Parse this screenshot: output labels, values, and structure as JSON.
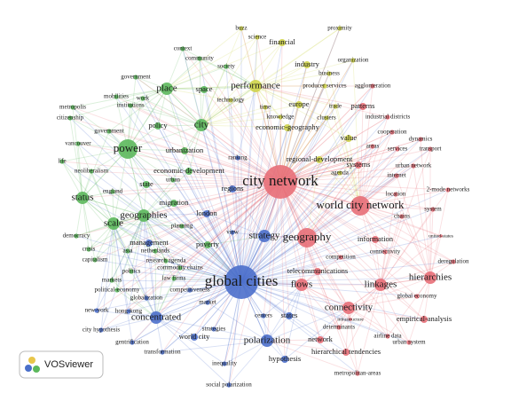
{
  "nodes": [
    {
      "label": "buzz"
    },
    {
      "label": "proximity"
    },
    {
      "label": "science"
    },
    {
      "label": "financial"
    },
    {
      "label": "context"
    },
    {
      "label": "community"
    },
    {
      "label": "organization"
    },
    {
      "label": "society"
    },
    {
      "label": "industry"
    },
    {
      "label": "business"
    },
    {
      "label": "government"
    },
    {
      "label": "performance"
    },
    {
      "label": "producer services"
    },
    {
      "label": "agglomeration"
    },
    {
      "label": "place"
    },
    {
      "label": "space"
    },
    {
      "label": "mobilities"
    },
    {
      "label": "work"
    },
    {
      "label": "technology"
    },
    {
      "label": "institutions"
    },
    {
      "label": "metropolis"
    },
    {
      "label": "europe"
    },
    {
      "label": "trade"
    },
    {
      "label": "patterns"
    },
    {
      "label": "time"
    },
    {
      "label": "citizenship"
    },
    {
      "label": "knowledge"
    },
    {
      "label": "clusters"
    },
    {
      "label": "industrial districts"
    },
    {
      "label": "policy"
    },
    {
      "label": "city"
    },
    {
      "label": "government"
    },
    {
      "label": "economic-geography"
    },
    {
      "label": "cooperation"
    },
    {
      "label": "value"
    },
    {
      "label": "dynamics"
    },
    {
      "label": "vancouver"
    },
    {
      "label": "power"
    },
    {
      "label": "areas"
    },
    {
      "label": "services"
    },
    {
      "label": "transport"
    },
    {
      "label": "urbanization"
    },
    {
      "label": "life"
    },
    {
      "label": "regional-development"
    },
    {
      "label": "ranking"
    },
    {
      "label": "systems"
    },
    {
      "label": "urban network"
    },
    {
      "label": "neoliberalism"
    },
    {
      "label": "economic-development"
    },
    {
      "label": "agenda"
    },
    {
      "label": "city network"
    },
    {
      "label": "internet"
    },
    {
      "label": "urban"
    },
    {
      "label": "state"
    },
    {
      "label": "status"
    },
    {
      "label": "regions"
    },
    {
      "label": "england"
    },
    {
      "label": "location"
    },
    {
      "label": "2-mode networks"
    },
    {
      "label": "migration"
    },
    {
      "label": "world city network"
    },
    {
      "label": "chains"
    },
    {
      "label": "system"
    },
    {
      "label": "london"
    },
    {
      "label": "geographies"
    },
    {
      "label": "scale"
    },
    {
      "label": "planning"
    },
    {
      "label": "democracy"
    },
    {
      "label": "strategy"
    },
    {
      "label": "geography"
    },
    {
      "label": "information"
    },
    {
      "label": "united-states"
    },
    {
      "label": "view"
    },
    {
      "label": "poverty"
    },
    {
      "label": "management"
    },
    {
      "label": "asia"
    },
    {
      "label": "netherlands"
    },
    {
      "label": "crisis"
    },
    {
      "label": "connectivity"
    },
    {
      "label": "competition"
    },
    {
      "label": "deregulation"
    },
    {
      "label": "capitalism"
    },
    {
      "label": "research agenda"
    },
    {
      "label": "commodity chains"
    },
    {
      "label": "hierarchies"
    },
    {
      "label": "politics"
    },
    {
      "label": "telecommunications"
    },
    {
      "label": "markets"
    },
    {
      "label": "law firms"
    },
    {
      "label": "global cities"
    },
    {
      "label": "flows"
    },
    {
      "label": "linkages"
    },
    {
      "label": "political-economy"
    },
    {
      "label": "competitiveness"
    },
    {
      "label": "global economy"
    },
    {
      "label": "globalization"
    },
    {
      "label": "market"
    },
    {
      "label": "connectivity"
    },
    {
      "label": "new-york"
    },
    {
      "label": "hong-kong"
    },
    {
      "label": "concentrated"
    },
    {
      "label": "centers"
    },
    {
      "label": "states"
    },
    {
      "label": "infrastructure"
    },
    {
      "label": "empirical-analysis"
    },
    {
      "label": "determinants"
    },
    {
      "label": "city hypothesis"
    },
    {
      "label": "strategies"
    },
    {
      "label": "world city"
    },
    {
      "label": "gentrification"
    },
    {
      "label": "polarization"
    },
    {
      "label": "network"
    },
    {
      "label": "airline data"
    },
    {
      "label": "urban system"
    },
    {
      "label": "transformation"
    },
    {
      "label": "hierarchical tendencies"
    },
    {
      "label": "hypothesis"
    },
    {
      "label": "inequality"
    },
    {
      "label": "metropolitan-areas"
    },
    {
      "label": "social polarization"
    }
  ],
  "logo": {
    "text": "VOSviewer"
  }
}
